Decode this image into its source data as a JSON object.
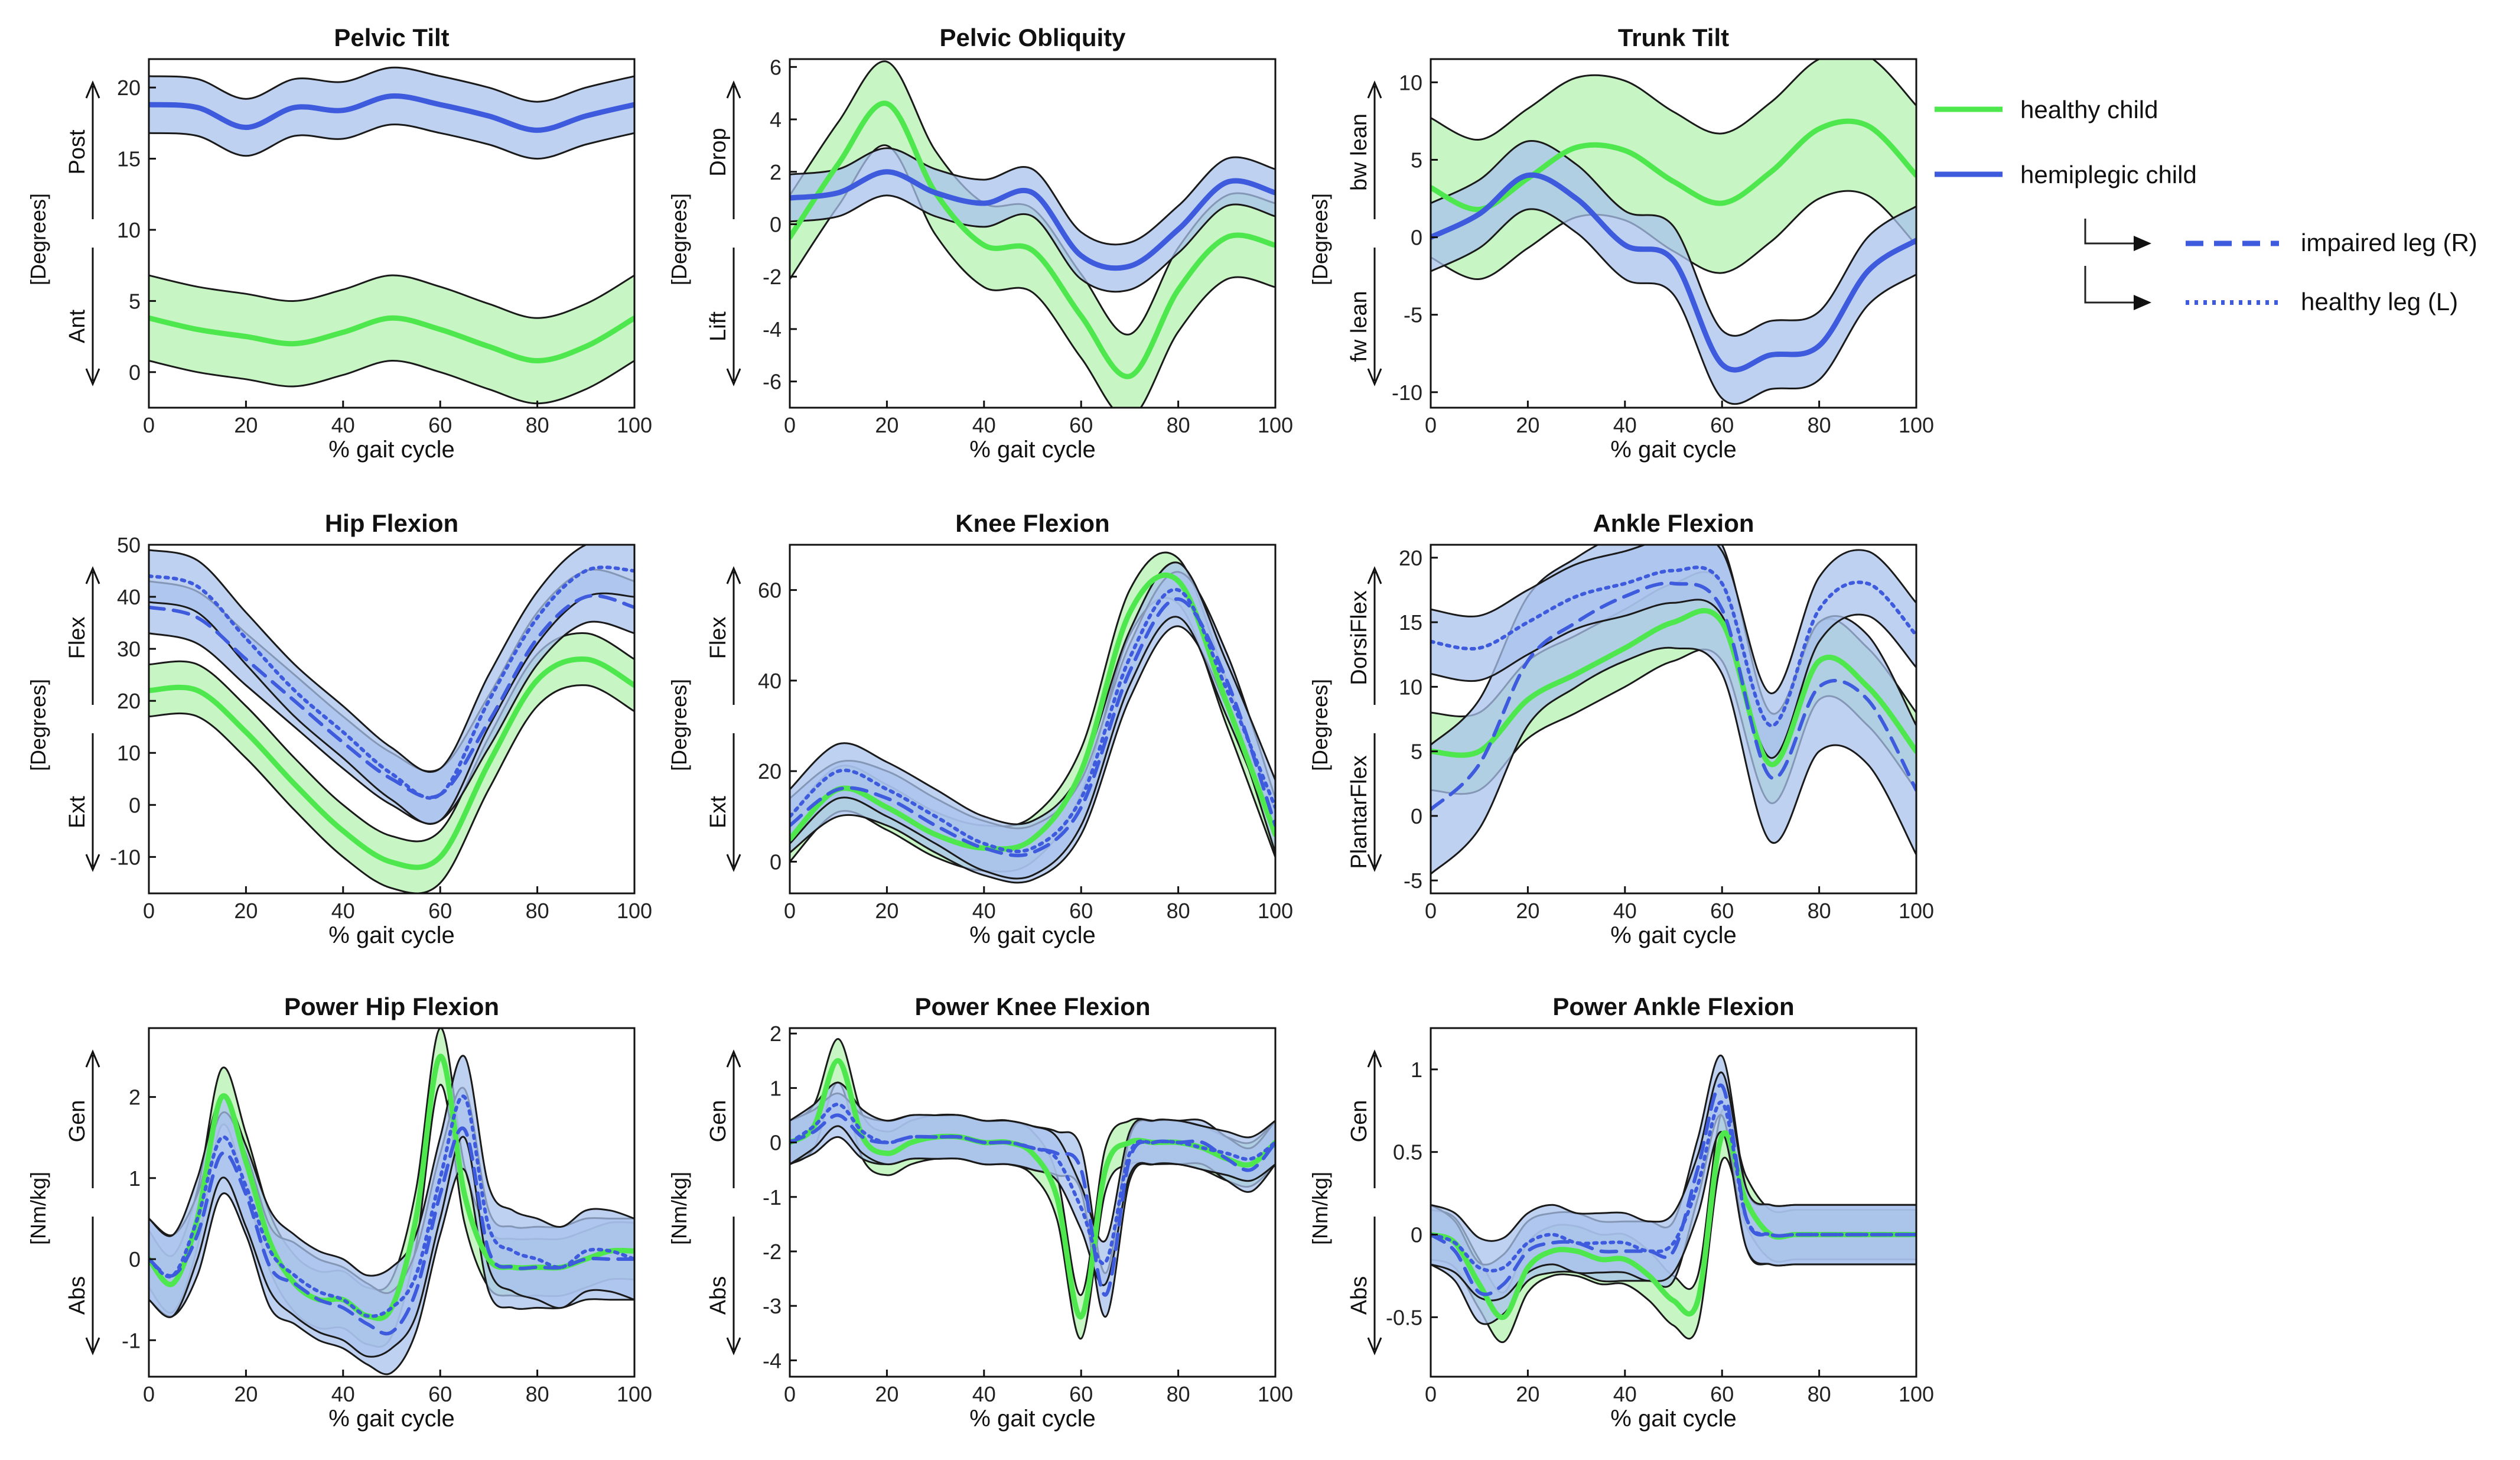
{
  "figure": {
    "x_axis_label": "% gait cycle",
    "x_ticks": [
      "0",
      "20",
      "40",
      "60",
      "80",
      "100"
    ],
    "colors": {
      "healthy_line": "#4ee84e",
      "healthy_band": "#b6f2b0",
      "hemi_line": "#3d5bdc",
      "hemi_band": "#a9c1ec",
      "band_edge": "#1a1a1a"
    }
  },
  "legend": {
    "healthy_child": "healthy child",
    "hemiplegic_child": "hemiplegic child",
    "impaired_leg": "impaired leg (R)",
    "healthy_leg": "healthy leg (L)"
  },
  "chart_data": [
    {
      "type": "line",
      "title": "Pelvic Tilt",
      "xlabel": "% gait cycle",
      "ylabel": "[Degrees]",
      "upper_arrow_label": "Post",
      "lower_arrow_label": "Ant",
      "xlim": [
        0,
        100
      ],
      "ylim": [
        -2.5,
        22
      ],
      "yticks": [
        0,
        5,
        10,
        15,
        20
      ],
      "x": [
        0,
        10,
        20,
        30,
        40,
        50,
        60,
        70,
        80,
        90,
        100
      ],
      "series": [
        {
          "name": "healthy child",
          "values": [
            3.8,
            3.0,
            2.5,
            2.0,
            2.8,
            3.8,
            3.0,
            1.8,
            0.8,
            1.8,
            3.8
          ],
          "band": 3.0
        },
        {
          "name": "hemiplegic child",
          "values": [
            18.8,
            18.6,
            17.2,
            18.6,
            18.4,
            19.4,
            18.8,
            18.0,
            17.0,
            18.0,
            18.8
          ],
          "band": 2.0
        }
      ]
    },
    {
      "type": "line",
      "title": "Pelvic Obliquity",
      "xlabel": "% gait cycle",
      "ylabel": "[Degrees]",
      "upper_arrow_label": "Drop",
      "lower_arrow_label": "Lift",
      "xlim": [
        0,
        100
      ],
      "ylim": [
        -7,
        6.3
      ],
      "yticks": [
        -6,
        -4,
        -2,
        0,
        2,
        4,
        6
      ],
      "x": [
        0,
        10,
        20,
        30,
        40,
        50,
        60,
        70,
        80,
        90,
        100
      ],
      "series": [
        {
          "name": "healthy child",
          "values": [
            -0.5,
            2.3,
            4.6,
            1.2,
            -0.8,
            -1.0,
            -3.5,
            -5.8,
            -2.5,
            -0.5,
            -0.8
          ],
          "band": 1.6
        },
        {
          "name": "hemiplegic child",
          "values": [
            1.0,
            1.2,
            2.0,
            1.2,
            0.8,
            1.2,
            -1.2,
            -1.6,
            -0.2,
            1.6,
            1.2
          ],
          "band": 0.9
        }
      ]
    },
    {
      "type": "line",
      "title": "Trunk Tilt",
      "xlabel": "% gait cycle",
      "ylabel": "[Degrees]",
      "upper_arrow_label": "bw lean",
      "lower_arrow_label": "fw lean",
      "xlim": [
        0,
        100
      ],
      "ylim": [
        -11,
        11.5
      ],
      "yticks": [
        -10,
        -5,
        0,
        5,
        10
      ],
      "x": [
        0,
        10,
        20,
        30,
        40,
        50,
        60,
        70,
        80,
        90,
        100
      ],
      "series": [
        {
          "name": "healthy child",
          "values": [
            3.2,
            1.8,
            3.8,
            5.8,
            5.6,
            3.6,
            2.2,
            4.2,
            7.0,
            7.2,
            4.0
          ],
          "band": 4.5
        },
        {
          "name": "hemiplegic child",
          "values": [
            0.0,
            1.5,
            4.0,
            2.5,
            -0.5,
            -1.5,
            -8.2,
            -7.6,
            -7.0,
            -2.2,
            -0.2
          ],
          "band": 2.2
        }
      ]
    },
    {
      "type": "line",
      "title": "Hip Flexion",
      "xlabel": "% gait cycle",
      "ylabel": "[Degrees]",
      "upper_arrow_label": "Flex",
      "lower_arrow_label": "Ext",
      "xlim": [
        0,
        100
      ],
      "ylim": [
        -17,
        50
      ],
      "yticks": [
        -10,
        0,
        10,
        20,
        30,
        40,
        50
      ],
      "x": [
        0,
        10,
        20,
        30,
        40,
        50,
        60,
        70,
        80,
        90,
        100
      ],
      "series": [
        {
          "name": "healthy child",
          "values": [
            22,
            22,
            14,
            4,
            -5,
            -11,
            -10,
            8,
            24,
            28,
            23
          ],
          "band": 5
        },
        {
          "name": "impaired leg (R)",
          "values": [
            38,
            36,
            28,
            20,
            12,
            5,
            2,
            16,
            32,
            40,
            38
          ],
          "band": 5
        },
        {
          "name": "healthy leg (L)",
          "values": [
            44,
            42,
            32,
            22,
            14,
            6,
            2,
            20,
            36,
            45,
            45
          ],
          "band": 5
        }
      ]
    },
    {
      "type": "line",
      "title": "Knee Flexion",
      "xlabel": "% gait cycle",
      "ylabel": "[Degrees]",
      "upper_arrow_label": "Flex",
      "lower_arrow_label": "Ext",
      "xlim": [
        0,
        100
      ],
      "ylim": [
        -7,
        70
      ],
      "yticks": [
        0,
        20,
        40,
        60
      ],
      "x": [
        0,
        10,
        20,
        30,
        40,
        50,
        60,
        70,
        80,
        90,
        100
      ],
      "series": [
        {
          "name": "healthy child",
          "values": [
            5,
            16,
            12,
            6,
            3,
            5,
            20,
            55,
            62,
            35,
            6
          ],
          "band": 5
        },
        {
          "name": "impaired leg (R)",
          "values": [
            8,
            16,
            14,
            8,
            3,
            2,
            12,
            42,
            58,
            40,
            8
          ],
          "band": 6
        },
        {
          "name": "healthy leg (L)",
          "values": [
            10,
            20,
            16,
            10,
            4,
            3,
            14,
            45,
            60,
            38,
            12
          ],
          "band": 6
        }
      ]
    },
    {
      "type": "line",
      "title": "Ankle Flexion",
      "xlabel": "% gait cycle",
      "ylabel": "[Degrees]",
      "upper_arrow_label": "DorsiFlex",
      "lower_arrow_label": "PlantarFlex",
      "xlim": [
        0,
        100
      ],
      "ylim": [
        -6,
        21
      ],
      "yticks": [
        -5,
        0,
        5,
        10,
        15,
        20
      ],
      "x": [
        0,
        10,
        20,
        30,
        40,
        50,
        60,
        70,
        80,
        90,
        100
      ],
      "series": [
        {
          "name": "healthy child",
          "values": [
            5,
            5,
            9,
            11,
            13,
            15,
            15,
            4,
            12,
            10,
            5
          ],
          "band": 3
        },
        {
          "name": "impaired leg (R)",
          "values": [
            0.5,
            4,
            12,
            15,
            17,
            18,
            16,
            3,
            10,
            9,
            2
          ],
          "band": 5
        },
        {
          "name": "healthy leg (L)",
          "values": [
            13.5,
            13,
            15,
            17,
            18,
            19,
            18,
            7,
            16,
            18,
            14
          ],
          "band": 2.5
        }
      ]
    },
    {
      "type": "line",
      "title": "Power Hip Flexion",
      "xlabel": "% gait cycle",
      "ylabel": "[Nm/kg]",
      "upper_arrow_label": "Gen",
      "lower_arrow_label": "Abs",
      "xlim": [
        0,
        100
      ],
      "ylim": [
        -1.45,
        2.85
      ],
      "yticks": [
        -1,
        0,
        1,
        2
      ],
      "x": [
        0,
        5,
        10,
        15,
        20,
        25,
        30,
        35,
        40,
        45,
        50,
        55,
        60,
        65,
        70,
        75,
        80,
        85,
        90,
        95,
        100
      ],
      "series": [
        {
          "name": "healthy child",
          "values": [
            0,
            -0.3,
            0.5,
            2.0,
            1.2,
            0.2,
            -0.3,
            -0.5,
            -0.5,
            -0.7,
            -0.6,
            0.5,
            2.5,
            0.8,
            0.0,
            -0.1,
            -0.1,
            -0.1,
            0.0,
            0.1,
            0.1
          ],
          "band": 0.35
        },
        {
          "name": "impaired leg (R)",
          "values": [
            0,
            -0.2,
            0.3,
            1.3,
            0.8,
            -0.1,
            -0.3,
            -0.5,
            -0.6,
            -0.8,
            -0.9,
            -0.4,
            0.8,
            1.6,
            0.1,
            -0.1,
            -0.1,
            -0.1,
            0.0,
            0.0,
            0.0
          ],
          "band": 0.5
        },
        {
          "name": "healthy leg (L)",
          "values": [
            0,
            -0.2,
            0.5,
            1.5,
            0.9,
            0.1,
            -0.2,
            -0.4,
            -0.5,
            -0.7,
            -0.6,
            -0.2,
            1.0,
            2.0,
            0.4,
            0.1,
            0.0,
            -0.1,
            0.1,
            0.1,
            0.0
          ],
          "band": 0.5
        }
      ]
    },
    {
      "type": "line",
      "title": "Power Knee Flexion",
      "xlabel": "% gait cycle",
      "ylabel": "[Nm/kg]",
      "upper_arrow_label": "Gen",
      "lower_arrow_label": "Abs",
      "xlim": [
        0,
        100
      ],
      "ylim": [
        -4.3,
        2.1
      ],
      "yticks": [
        -4,
        -3,
        -2,
        -1,
        0,
        1,
        2
      ],
      "x": [
        0,
        5,
        10,
        15,
        20,
        25,
        30,
        35,
        40,
        45,
        50,
        55,
        60,
        65,
        70,
        75,
        80,
        85,
        90,
        95,
        100
      ],
      "series": [
        {
          "name": "healthy child",
          "values": [
            0,
            0.3,
            1.5,
            0.1,
            -0.2,
            0.0,
            0.1,
            0.1,
            0.0,
            0.0,
            -0.2,
            -1.0,
            -3.2,
            -0.5,
            0.0,
            0.0,
            0.0,
            -0.1,
            -0.3,
            -0.4,
            0.0
          ],
          "band": 0.4
        },
        {
          "name": "impaired leg (R)",
          "values": [
            0,
            0.2,
            0.5,
            0.1,
            0.0,
            0.1,
            0.1,
            0.1,
            0.0,
            0.0,
            -0.1,
            -0.2,
            -0.5,
            -2.8,
            -0.3,
            0.0,
            0.0,
            0.0,
            -0.3,
            -0.5,
            0.0
          ],
          "band": 0.4
        },
        {
          "name": "healthy leg (L)",
          "values": [
            0,
            0.3,
            0.7,
            0.2,
            0.0,
            0.1,
            0.1,
            0.1,
            0.0,
            0.0,
            -0.1,
            -0.3,
            -1.2,
            -2.2,
            -0.2,
            0.0,
            0.0,
            -0.1,
            -0.2,
            -0.3,
            0.0
          ],
          "band": 0.4
        }
      ]
    },
    {
      "type": "line",
      "title": "Power Ankle Flexion",
      "xlabel": "% gait cycle",
      "ylabel": "[Nm/kg]",
      "upper_arrow_label": "Gen",
      "lower_arrow_label": "Abs",
      "xlim": [
        0,
        100
      ],
      "ylim": [
        -0.86,
        1.25
      ],
      "yticks": [
        -0.5,
        0,
        0.5,
        1
      ],
      "x": [
        0,
        5,
        10,
        15,
        20,
        25,
        30,
        35,
        40,
        45,
        50,
        55,
        60,
        65,
        70,
        75,
        80,
        85,
        90,
        95,
        100
      ],
      "series": [
        {
          "name": "healthy child",
          "values": [
            0,
            -0.05,
            -0.3,
            -0.5,
            -0.2,
            -0.1,
            -0.1,
            -0.15,
            -0.15,
            -0.25,
            -0.4,
            -0.4,
            0.6,
            0.2,
            0.0,
            0.0,
            0.0,
            0.0,
            0.0,
            0.0,
            0.0
          ],
          "band": 0.15
        },
        {
          "name": "impaired leg (R)",
          "values": [
            0,
            -0.1,
            -0.35,
            -0.3,
            -0.1,
            -0.05,
            -0.05,
            -0.1,
            -0.1,
            -0.1,
            -0.1,
            0.4,
            0.9,
            0.1,
            0.0,
            0.0,
            0.0,
            0.0,
            0.0,
            0.0,
            0.0
          ],
          "band": 0.18
        },
        {
          "name": "healthy leg (L)",
          "values": [
            0,
            -0.05,
            -0.2,
            -0.2,
            -0.05,
            0.0,
            -0.05,
            -0.05,
            -0.05,
            -0.1,
            -0.05,
            0.3,
            0.8,
            0.1,
            0.0,
            0.0,
            0.0,
            0.0,
            0.0,
            0.0,
            0.0
          ],
          "band": 0.18
        }
      ]
    }
  ]
}
